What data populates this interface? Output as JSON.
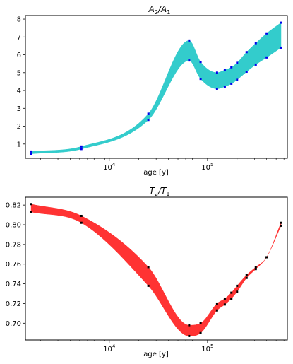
{
  "chart_data": [
    {
      "type": "area",
      "title_main": "A",
      "title_sub1": "2",
      "title_sep": "/A",
      "title_sub2": "1",
      "xlabel": "age [y]",
      "xscale": "log",
      "xlim": [
        1400,
        650000
      ],
      "ylim": [
        0.2,
        8.2
      ],
      "x_ticks": [
        {
          "value": 10000,
          "base": "10",
          "exp": "4"
        },
        {
          "value": 100000,
          "base": "10",
          "exp": "5"
        }
      ],
      "y_ticks": [
        "1",
        "2",
        "3",
        "4",
        "5",
        "6",
        "7",
        "8"
      ],
      "y_tick_values": [
        1,
        2,
        3,
        4,
        5,
        6,
        7,
        8
      ],
      "band_color": "#33cccc",
      "marker_color": "#0000ee",
      "series": [
        {
          "x": [
            1600,
            5200,
            25000,
            65000,
            85000,
            125000,
            150000,
            175000,
            200000,
            250000,
            310000,
            400000,
            560000
          ],
          "lower": [
            0.45,
            0.72,
            2.35,
            5.68,
            4.65,
            4.1,
            4.22,
            4.38,
            4.6,
            5.05,
            5.45,
            5.85,
            6.4
          ],
          "upper": [
            0.58,
            0.86,
            2.7,
            6.8,
            5.6,
            5.0,
            5.15,
            5.3,
            5.55,
            6.15,
            6.65,
            7.2,
            7.8
          ]
        }
      ]
    },
    {
      "type": "area",
      "title_main": "T",
      "title_sub1": "2",
      "title_sep": "/T",
      "title_sub2": "1",
      "xlabel": "age [y]",
      "xscale": "log",
      "xlim": [
        1400,
        650000
      ],
      "ylim": [
        0.683,
        0.828
      ],
      "x_ticks": [
        {
          "value": 10000,
          "base": "10",
          "exp": "4"
        },
        {
          "value": 100000,
          "base": "10",
          "exp": "5"
        }
      ],
      "y_ticks": [
        "0.70",
        "0.72",
        "0.74",
        "0.76",
        "0.78",
        "0.80",
        "0.82"
      ],
      "y_tick_values": [
        0.7,
        0.72,
        0.74,
        0.76,
        0.78,
        0.8,
        0.82
      ],
      "band_color": "#ff3333",
      "marker_color": "#000000",
      "series": [
        {
          "x": [
            1600,
            5200,
            25000,
            65000,
            85000,
            125000,
            150000,
            175000,
            200000,
            250000,
            310000,
            400000,
            560000
          ],
          "lower": [
            0.813,
            0.802,
            0.738,
            0.687,
            0.69,
            0.713,
            0.719,
            0.725,
            0.732,
            0.746,
            0.755,
            0.767,
            0.799
          ],
          "upper": [
            0.821,
            0.809,
            0.757,
            0.698,
            0.7,
            0.72,
            0.725,
            0.731,
            0.738,
            0.749,
            0.757,
            0.767,
            0.802
          ]
        }
      ]
    }
  ]
}
